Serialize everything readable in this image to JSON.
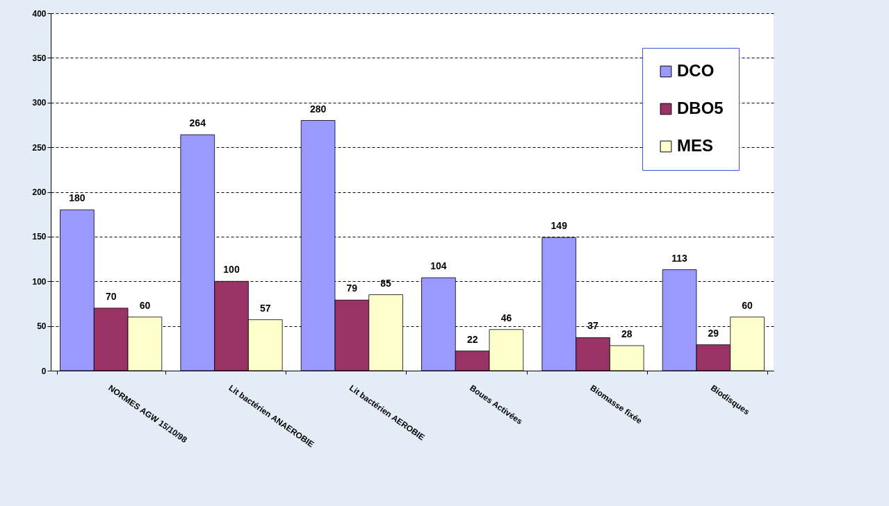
{
  "chart_data": {
    "type": "bar",
    "categories": [
      "NORMES AGW 15/10/98",
      "Lit bactérien ANAEROBIE",
      "Lit bactérien AEROBIE",
      "Boues Activées",
      "Biomasse fixée",
      "Biodisques"
    ],
    "series": [
      {
        "name": "DCO",
        "color": "#9999ff",
        "values": [
          180,
          264,
          280,
          104,
          149,
          113
        ]
      },
      {
        "name": "DBO5",
        "color": "#993366",
        "values": [
          70,
          100,
          79,
          22,
          37,
          29
        ]
      },
      {
        "name": "MES",
        "color": "#ffffcc",
        "values": [
          60,
          57,
          85,
          46,
          28,
          60
        ]
      }
    ],
    "ylim": [
      0,
      400
    ],
    "yticks": [
      0,
      50,
      100,
      150,
      200,
      250,
      300,
      350,
      400
    ],
    "grid": "y",
    "legend": "top right",
    "data_labels": true
  }
}
